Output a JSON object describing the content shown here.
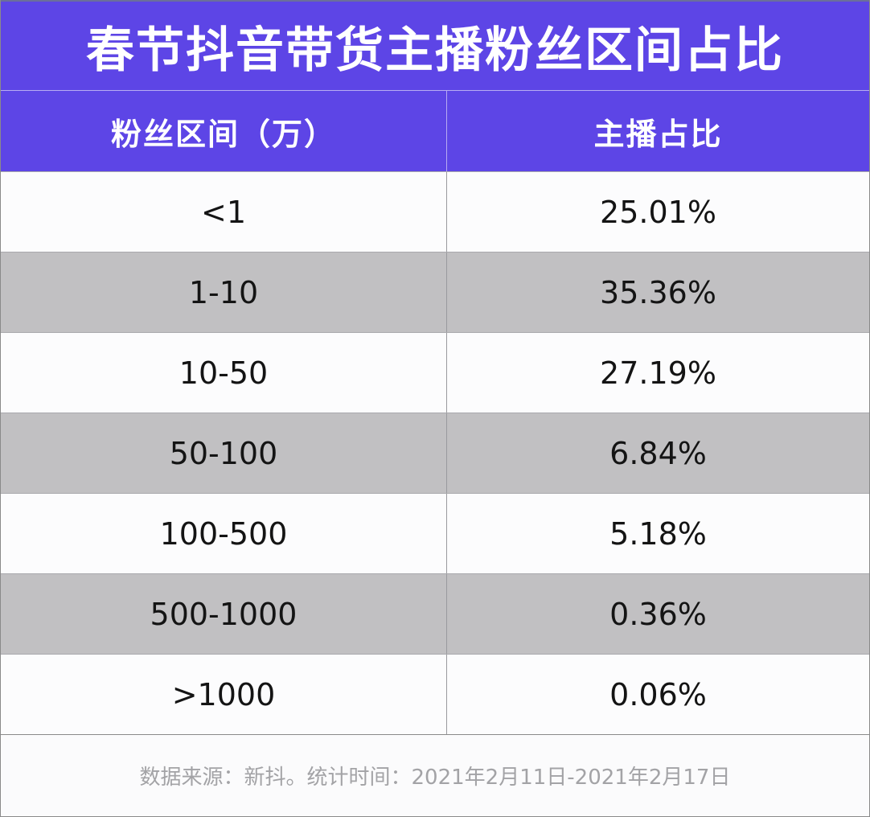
{
  "title": "春节抖音带货主播粉丝区间占比",
  "table": {
    "headers": [
      "粉丝区间（万）",
      "主播占比"
    ],
    "rows": [
      {
        "range": "<1",
        "share": "25.01%"
      },
      {
        "range": "1-10",
        "share": "35.36%"
      },
      {
        "range": "10-50",
        "share": "27.19%"
      },
      {
        "range": "50-100",
        "share": "6.84%"
      },
      {
        "range": "100-500",
        "share": "5.18%"
      },
      {
        "range": "500-1000",
        "share": "0.36%"
      },
      {
        "range": ">1000",
        "share": "0.06%"
      }
    ]
  },
  "footer": {
    "note": "数据来源：新抖。统计时间：2021年2月11日-2021年2月17日"
  },
  "colors": {
    "header_bg": "#5d45e6",
    "header_text": "#ffffff",
    "row_odd_bg": "#fcfcfd",
    "row_even_bg": "#c1c0c2",
    "footer_text": "#a3a3a6"
  }
}
